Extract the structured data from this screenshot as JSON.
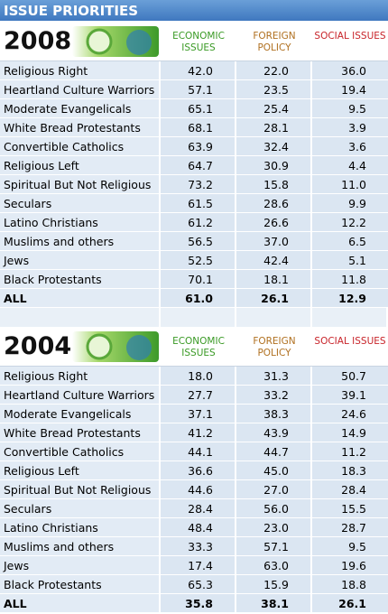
{
  "header": {
    "title": "ISSUE PRIORITIES"
  },
  "tables": [
    {
      "year": "2008",
      "columns": [
        "ECONOMIC ISSUES",
        "FOREIGN POLICY",
        "SOCIAL ISSUES"
      ],
      "rows": [
        [
          "Religious Right",
          "42.0",
          "22.0",
          "36.0"
        ],
        [
          "Heartland Culture Warriors",
          "57.1",
          "23.5",
          "19.4"
        ],
        [
          "Moderate Evangelicals",
          "65.1",
          "25.4",
          "9.5"
        ],
        [
          "White Bread Protestants",
          "68.1",
          "28.1",
          "3.9"
        ],
        [
          "Convertible Catholics",
          "63.9",
          "32.4",
          "3.6"
        ],
        [
          "Religious Left",
          "64.7",
          "30.9",
          "4.4"
        ],
        [
          "Spiritual But Not Religious",
          "73.2",
          "15.8",
          "11.0"
        ],
        [
          "Seculars",
          "61.5",
          "28.6",
          "9.9"
        ],
        [
          "Latino Christians",
          "61.2",
          "26.6",
          "12.2"
        ],
        [
          "Muslims and others",
          "56.5",
          "37.0",
          "6.5"
        ],
        [
          "Jews",
          "52.5",
          "42.4",
          "5.1"
        ],
        [
          "Black Protestants",
          "70.1",
          "18.1",
          "11.8"
        ]
      ],
      "total": [
        "ALL",
        "61.0",
        "26.1",
        "12.9"
      ]
    },
    {
      "year": "2004",
      "columns": [
        "ECONOMIC ISSUES",
        "FOREIGN POLICY",
        "SOCIAL ISSUES"
      ],
      "rows": [
        [
          "Religious Right",
          "18.0",
          "31.3",
          "50.7"
        ],
        [
          "Heartland Culture Warriors",
          "27.7",
          "33.2",
          "39.1"
        ],
        [
          "Moderate Evangelicals",
          "37.1",
          "38.3",
          "24.6"
        ],
        [
          "White Bread Protestants",
          "41.2",
          "43.9",
          "14.9"
        ],
        [
          "Convertible Catholics",
          "44.1",
          "44.7",
          "11.2"
        ],
        [
          "Religious Left",
          "36.6",
          "45.0",
          "18.3"
        ],
        [
          "Spiritual But Not Religious",
          "44.6",
          "27.0",
          "28.4"
        ],
        [
          "Seculars",
          "28.4",
          "56.0",
          "15.5"
        ],
        [
          "Latino Christians",
          "48.4",
          "23.0",
          "28.7"
        ],
        [
          "Muslims and others",
          "33.3",
          "57.1",
          "9.5"
        ],
        [
          "Jews",
          "17.4",
          "63.0",
          "19.6"
        ],
        [
          "Black Protestants",
          "65.3",
          "15.9",
          "18.8"
        ]
      ],
      "total": [
        "ALL",
        "35.8",
        "38.1",
        "26.1"
      ]
    }
  ]
}
